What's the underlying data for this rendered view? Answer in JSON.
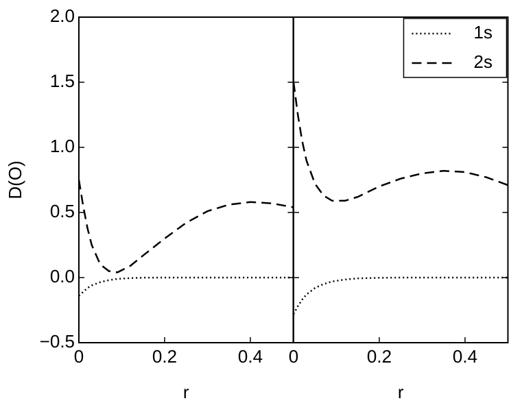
{
  "chart_data": [
    {
      "type": "line",
      "ylabel": "D(O)",
      "xlabel": "r",
      "x": [
        0,
        0.01,
        0.02,
        0.03,
        0.05,
        0.07,
        0.09,
        0.12,
        0.15,
        0.2,
        0.25,
        0.3,
        0.35,
        0.4,
        0.45,
        0.5
      ],
      "series": [
        {
          "color": "#000000",
          "dash": "dotted",
          "values": [
            -0.14,
            -0.11,
            -0.08,
            -0.06,
            -0.035,
            -0.02,
            -0.01,
            -0.004,
            -0.001,
            0,
            0,
            0,
            0,
            0,
            0,
            0
          ]
        },
        {
          "color": "#000000",
          "dash": "dashed",
          "values": [
            0.75,
            0.55,
            0.38,
            0.25,
            0.1,
            0.05,
            0.04,
            0.09,
            0.17,
            0.3,
            0.42,
            0.51,
            0.56,
            0.58,
            0.57,
            0.54
          ]
        }
      ],
      "xlim": [
        0,
        0.5
      ],
      "ylim": [
        -0.5,
        2.0
      ],
      "xticks": [
        0,
        0.2,
        0.4
      ],
      "yticks": [
        {
          "value": -0.5,
          "label": "−0.5"
        },
        {
          "value": 0,
          "label": "0.0"
        },
        {
          "value": 0.5,
          "label": "0.5"
        },
        {
          "value": 1,
          "label": "1.0"
        },
        {
          "value": 1.5,
          "label": "1.5"
        },
        {
          "value": 2,
          "label": "2.0"
        }
      ]
    },
    {
      "type": "line",
      "xlabel": "r",
      "legend": "upper right",
      "x": [
        0,
        0.01,
        0.02,
        0.03,
        0.05,
        0.07,
        0.09,
        0.12,
        0.15,
        0.2,
        0.25,
        0.3,
        0.35,
        0.4,
        0.45,
        0.5
      ],
      "series": [
        {
          "name": "1s",
          "color": "#000000",
          "dash": "dotted",
          "values": [
            -0.28,
            -0.22,
            -0.17,
            -0.13,
            -0.08,
            -0.05,
            -0.03,
            -0.015,
            -0.006,
            -0.002,
            0,
            0,
            0,
            0,
            0,
            0
          ]
        },
        {
          "name": "2s",
          "color": "#000000",
          "dash": "dashed",
          "values": [
            1.5,
            1.25,
            1.05,
            0.9,
            0.72,
            0.63,
            0.59,
            0.59,
            0.62,
            0.7,
            0.76,
            0.8,
            0.82,
            0.81,
            0.77,
            0.71
          ]
        }
      ],
      "xlim": [
        0,
        0.5
      ],
      "ylim": [
        -0.5,
        2.0
      ],
      "xticks": [
        0,
        0.2,
        0.4
      ]
    }
  ]
}
